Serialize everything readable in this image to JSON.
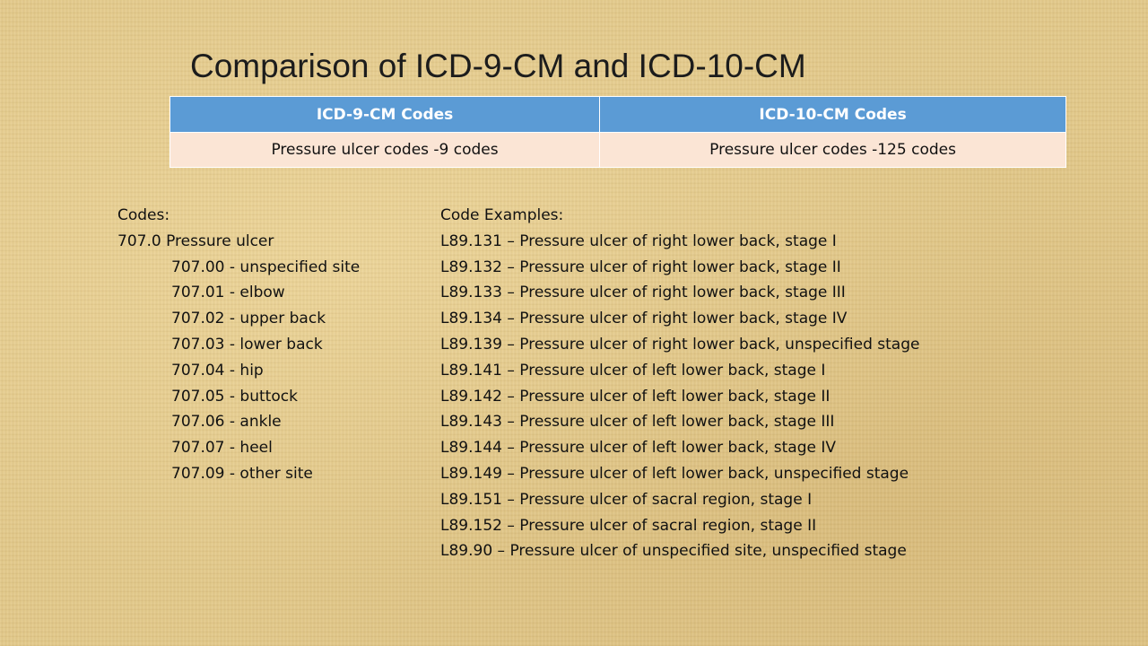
{
  "slide": {
    "title": "Comparison of ICD-9-CM and ICD-10-CM"
  },
  "table": {
    "headers": [
      "ICD-9-CM Codes",
      "ICD-10-CM Codes"
    ],
    "rows": [
      [
        "Pressure ulcer codes -9 codes",
        "Pressure ulcer codes -125 codes"
      ]
    ]
  },
  "icd9": {
    "heading": "Codes:",
    "parent": "707.0 Pressure ulcer",
    "items": [
      "707.00 -  unspecified site",
      "707.01 -  elbow",
      "707.02 -  upper back",
      "707.03 -  lower back",
      "707.04 -  hip",
      "707.05 -  buttock",
      "707.06 -  ankle",
      "707.07 -  heel",
      "707.09 - other site"
    ]
  },
  "icd10": {
    "heading": "Code Examples:",
    "items": [
      "L89.131 – Pressure ulcer of right lower back, stage I",
      "L89.132 – Pressure ulcer of right lower back, stage II",
      "L89.133 – Pressure ulcer of right lower back, stage III",
      "L89.134 – Pressure ulcer of right lower back, stage IV",
      "L89.139 – Pressure ulcer of right lower back, unspecified stage",
      "L89.141 – Pressure ulcer of left lower back, stage I",
      "L89.142 – Pressure ulcer of left lower back, stage II",
      "L89.143 – Pressure ulcer of left lower back, stage III",
      "L89.144 – Pressure ulcer of left lower back, stage IV",
      "L89.149 – Pressure ulcer of left lower back, unspecified stage",
      "L89.151 – Pressure ulcer of sacral region, stage I",
      "L89.152 – Pressure ulcer of sacral region, stage II",
      "L89.90 – Pressure ulcer of unspecified site, unspecified stage"
    ]
  }
}
